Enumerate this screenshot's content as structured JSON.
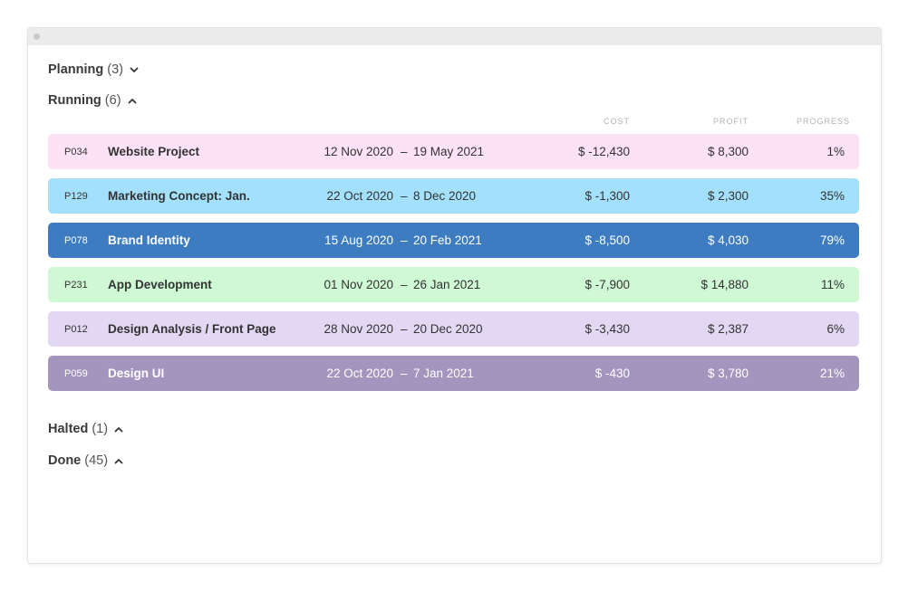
{
  "groups": {
    "planning": {
      "name": "Planning",
      "count": "(3)",
      "state": "collapsed"
    },
    "running": {
      "name": "Running",
      "count": "(6)",
      "state": "expanded"
    },
    "halted": {
      "name": "Halted",
      "count": "(1)",
      "state": "expanded"
    },
    "done": {
      "name": "Done",
      "count": "(45)",
      "state": "expanded"
    }
  },
  "columns": {
    "cost": "Cost",
    "profit": "Profit",
    "progress": "Progress"
  },
  "rows": [
    {
      "id": "P034",
      "title": "Website Project",
      "start": "12 Nov 2020",
      "dash": "–",
      "end": "19 May 2021",
      "cost": "$ -12,430",
      "profit": "$ 8,300",
      "progress": "1%",
      "bg": "#fde2f7",
      "fg": "#333333"
    },
    {
      "id": "P129",
      "title": "Marketing Concept: Jan.",
      "start": "22 Oct 2020",
      "dash": "–",
      "end": "8 Dec 2020",
      "cost": "$ -1,300",
      "profit": "$ 2,300",
      "progress": "35%",
      "bg": "#a3e0fc",
      "fg": "#333333"
    },
    {
      "id": "P078",
      "title": "Brand Identity",
      "start": "15 Aug 2020",
      "dash": "–",
      "end": "20 Feb 2021",
      "cost": "$ -8,500",
      "profit": "$ 4,030",
      "progress": "79%",
      "bg": "#3d7cc1",
      "fg": "#ffffff"
    },
    {
      "id": "P231",
      "title": "App Development",
      "start": "01 Nov 2020",
      "dash": "–",
      "end": "26 Jan 2021",
      "cost": "$ -7,900",
      "profit": "$ 14,880",
      "progress": "11%",
      "bg": "#cff8d4",
      "fg": "#333333"
    },
    {
      "id": "P012",
      "title": "Design Analysis / Front Page",
      "start": "28 Nov 2020",
      "dash": "–",
      "end": "20 Dec 2020",
      "cost": "$ -3,430",
      "profit": "$ 2,387",
      "progress": "6%",
      "bg": "#e2d8f3",
      "fg": "#333333"
    },
    {
      "id": "P059",
      "title": "Design UI",
      "start": "22 Oct 2020",
      "dash": "–",
      "end": "7 Jan 2021",
      "cost": "$ -430",
      "profit": "$ 3,780",
      "progress": "21%",
      "bg": "#a395be",
      "fg": "#ffffff"
    }
  ]
}
